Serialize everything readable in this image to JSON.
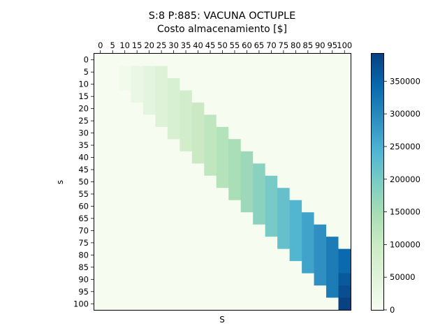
{
  "chart_data": {
    "type": "heatmap",
    "title": "S:8 P:885: VACUNA OCTUPLE",
    "xlabel_top": "Costo almacenamiento [$]",
    "xlabel": "S",
    "ylabel": "s",
    "x": [
      0,
      5,
      10,
      15,
      20,
      25,
      30,
      35,
      40,
      45,
      50,
      55,
      60,
      65,
      70,
      75,
      80,
      85,
      90,
      95,
      100
    ],
    "y": [
      0,
      5,
      10,
      15,
      20,
      25,
      30,
      35,
      40,
      45,
      50,
      55,
      60,
      65,
      70,
      75,
      80,
      85,
      90,
      95,
      100
    ],
    "x_ticks": [
      "0",
      "5",
      "10",
      "15",
      "20",
      "25",
      "30",
      "35",
      "40",
      "45",
      "50",
      "55",
      "60",
      "65",
      "70",
      "75",
      "80",
      "85",
      "90",
      "95",
      "100"
    ],
    "y_ticks": [
      "0",
      "5",
      "10",
      "15",
      "20",
      "25",
      "30",
      "35",
      "40",
      "45",
      "50",
      "55",
      "60",
      "65",
      "70",
      "75",
      "80",
      "85",
      "90",
      "95",
      "100"
    ],
    "values": [
      [
        0,
        0,
        0,
        0,
        0,
        0,
        0,
        0,
        0,
        0,
        0,
        0,
        0,
        0,
        0,
        0,
        0,
        0,
        0,
        0,
        0
      ],
      [
        0,
        0,
        10000,
        25000,
        40000,
        55000,
        0,
        0,
        0,
        0,
        0,
        0,
        0,
        0,
        0,
        0,
        0,
        0,
        0,
        0,
        0
      ],
      [
        0,
        0,
        10000,
        25000,
        40000,
        55000,
        70000,
        0,
        0,
        0,
        0,
        0,
        0,
        0,
        0,
        0,
        0,
        0,
        0,
        0,
        0
      ],
      [
        0,
        0,
        0,
        25000,
        40000,
        55000,
        70000,
        85000,
        0,
        0,
        0,
        0,
        0,
        0,
        0,
        0,
        0,
        0,
        0,
        0,
        0
      ],
      [
        0,
        0,
        0,
        0,
        40000,
        55000,
        70000,
        85000,
        100000,
        0,
        0,
        0,
        0,
        0,
        0,
        0,
        0,
        0,
        0,
        0,
        0
      ],
      [
        0,
        0,
        0,
        0,
        0,
        55000,
        70000,
        85000,
        100000,
        115000,
        0,
        0,
        0,
        0,
        0,
        0,
        0,
        0,
        0,
        0,
        0
      ],
      [
        0,
        0,
        0,
        0,
        0,
        0,
        70000,
        85000,
        100000,
        115000,
        130000,
        0,
        0,
        0,
        0,
        0,
        0,
        0,
        0,
        0,
        0
      ],
      [
        0,
        0,
        0,
        0,
        0,
        0,
        0,
        85000,
        100000,
        115000,
        130000,
        145000,
        0,
        0,
        0,
        0,
        0,
        0,
        0,
        0,
        0
      ],
      [
        0,
        0,
        0,
        0,
        0,
        0,
        0,
        0,
        100000,
        115000,
        130000,
        145000,
        160000,
        0,
        0,
        0,
        0,
        0,
        0,
        0,
        0
      ],
      [
        0,
        0,
        0,
        0,
        0,
        0,
        0,
        0,
        0,
        115000,
        130000,
        145000,
        160000,
        180000,
        0,
        0,
        0,
        0,
        0,
        0,
        0
      ],
      [
        0,
        0,
        0,
        0,
        0,
        0,
        0,
        0,
        0,
        0,
        130000,
        145000,
        160000,
        180000,
        200000,
        0,
        0,
        0,
        0,
        0,
        0
      ],
      [
        0,
        0,
        0,
        0,
        0,
        0,
        0,
        0,
        0,
        0,
        0,
        145000,
        160000,
        180000,
        200000,
        220000,
        0,
        0,
        0,
        0,
        0
      ],
      [
        0,
        0,
        0,
        0,
        0,
        0,
        0,
        0,
        0,
        0,
        0,
        0,
        160000,
        180000,
        200000,
        220000,
        240000,
        0,
        0,
        0,
        0
      ],
      [
        0,
        0,
        0,
        0,
        0,
        0,
        0,
        0,
        0,
        0,
        0,
        0,
        0,
        180000,
        200000,
        220000,
        240000,
        265000,
        0,
        0,
        0
      ],
      [
        0,
        0,
        0,
        0,
        0,
        0,
        0,
        0,
        0,
        0,
        0,
        0,
        0,
        0,
        200000,
        220000,
        240000,
        265000,
        290000,
        0,
        0
      ],
      [
        0,
        0,
        0,
        0,
        0,
        0,
        0,
        0,
        0,
        0,
        0,
        0,
        0,
        0,
        0,
        220000,
        240000,
        265000,
        290000,
        315000,
        0
      ],
      [
        0,
        0,
        0,
        0,
        0,
        0,
        0,
        0,
        0,
        0,
        0,
        0,
        0,
        0,
        0,
        0,
        240000,
        265000,
        290000,
        315000,
        340000
      ],
      [
        0,
        0,
        0,
        0,
        0,
        0,
        0,
        0,
        0,
        0,
        0,
        0,
        0,
        0,
        0,
        0,
        0,
        265000,
        290000,
        315000,
        340000
      ],
      [
        0,
        0,
        0,
        0,
        0,
        0,
        0,
        0,
        0,
        0,
        0,
        0,
        0,
        0,
        0,
        0,
        0,
        0,
        290000,
        315000,
        360000
      ],
      [
        0,
        0,
        0,
        0,
        0,
        0,
        0,
        0,
        0,
        0,
        0,
        0,
        0,
        0,
        0,
        0,
        0,
        0,
        0,
        315000,
        375000
      ],
      [
        0,
        0,
        0,
        0,
        0,
        0,
        0,
        0,
        0,
        0,
        0,
        0,
        0,
        0,
        0,
        0,
        0,
        0,
        0,
        0,
        390000
      ]
    ],
    "colorbar": {
      "min": 0,
      "max": 392000,
      "ticks": [
        0,
        50000,
        100000,
        150000,
        200000,
        250000,
        300000,
        350000
      ],
      "colormap": "GnBu",
      "colors": [
        "#f7fcf0",
        "#e0f3db",
        "#ccebc5",
        "#a8ddb5",
        "#7bccc4",
        "#4eb3d3",
        "#2b8cbe",
        "#0868ac",
        "#084081"
      ]
    },
    "grid": false,
    "legend": "none"
  }
}
